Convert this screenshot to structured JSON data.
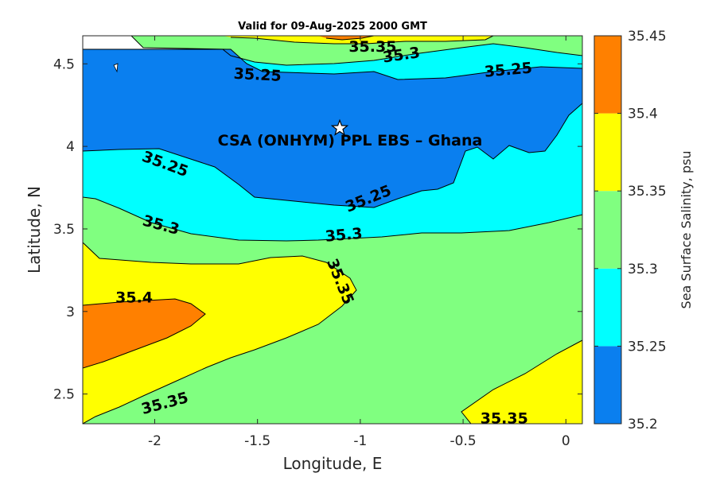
{
  "chart_data": {
    "type": "contour",
    "title": "Valid for 09-Aug-2025 2000 GMT",
    "xlabel": "Longitude, E",
    "ylabel": "Latitude, N",
    "xlim": [
      -2.35,
      0.08
    ],
    "ylim": [
      2.32,
      4.67
    ],
    "xticks": [
      -2,
      -1.5,
      -1,
      -0.5,
      0
    ],
    "xtick_labels": [
      "-2",
      "-1.5",
      "-1",
      "-0.5",
      "0"
    ],
    "yticks": [
      2.5,
      3,
      3.5,
      4,
      4.5
    ],
    "ytick_labels": [
      "2.5",
      "3",
      "3.5",
      "4",
      "4.5"
    ],
    "site": {
      "label": "CSA (ONHYM) PPL EBS  – Ghana",
      "lon": -1.1,
      "lat": 4.11
    },
    "colorbar": {
      "label": "Sea Surface Salinity, psu",
      "levels": [
        35.2,
        35.25,
        35.3,
        35.35,
        35.4,
        35.45
      ],
      "tick_labels": [
        "35.2",
        "35.25",
        "35.3",
        "35.35",
        "35.4",
        "35.45"
      ],
      "colors": [
        "#0a7fef",
        "#00ffff",
        "#80ff80",
        "#ffff00",
        "#ff8000"
      ]
    },
    "contour_labels": [
      {
        "text": "35.35",
        "lon": -0.94,
        "lat": 4.6,
        "rot": 0
      },
      {
        "text": "35.3",
        "lon": -0.8,
        "lat": 4.55,
        "rot": -8
      },
      {
        "text": "35.25",
        "lon": -1.5,
        "lat": 4.43,
        "rot": 3
      },
      {
        "text": "35.25",
        "lon": -0.28,
        "lat": 4.46,
        "rot": -5
      },
      {
        "text": "35.25",
        "lon": -1.95,
        "lat": 3.89,
        "rot": 20
      },
      {
        "text": "35.25",
        "lon": -0.96,
        "lat": 3.68,
        "rot": -22
      },
      {
        "text": "35.3",
        "lon": -1.97,
        "lat": 3.52,
        "rot": 15
      },
      {
        "text": "35.3",
        "lon": -1.08,
        "lat": 3.46,
        "rot": -5
      },
      {
        "text": "35.35",
        "lon": -1.1,
        "lat": 3.18,
        "rot": 68
      },
      {
        "text": "35.4",
        "lon": -2.1,
        "lat": 3.08,
        "rot": 0
      },
      {
        "text": "35.35",
        "lon": -1.95,
        "lat": 2.44,
        "rot": -15
      },
      {
        "text": "35.35",
        "lon": -0.3,
        "lat": 2.35,
        "rot": 0
      }
    ]
  }
}
